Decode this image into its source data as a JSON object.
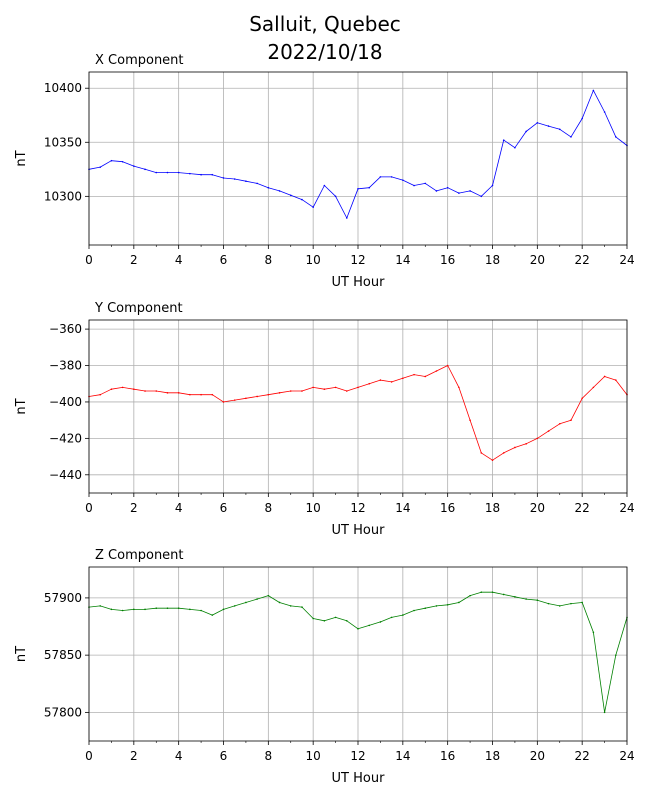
{
  "figure": {
    "title_line1": "Salluit, Quebec",
    "title_line2": "2022/10/18"
  },
  "chart_data": [
    {
      "type": "line",
      "title": "X Component",
      "xlabel": "UT Hour",
      "ylabel": "nT",
      "color": "#0000ff",
      "xlim": [
        0,
        24
      ],
      "ylim": [
        10255,
        10415
      ],
      "xticks": [
        0,
        2,
        4,
        6,
        8,
        10,
        12,
        14,
        16,
        18,
        20,
        22,
        24
      ],
      "yticks": [
        10300,
        10350,
        10400
      ],
      "grid": true,
      "x": [
        0,
        0.5,
        1,
        1.5,
        2,
        2.5,
        3,
        3.5,
        4,
        4.5,
        5,
        5.5,
        6,
        6.5,
        7,
        7.5,
        8,
        8.5,
        9,
        9.5,
        10,
        10.5,
        11,
        11.5,
        12,
        12.5,
        13,
        13.5,
        14,
        14.5,
        15,
        15.5,
        16,
        16.5,
        17,
        17.5,
        18,
        18.5,
        19,
        19.5,
        20,
        20.5,
        21,
        21.5,
        22,
        22.5,
        23,
        23.5,
        24
      ],
      "values": [
        10325,
        10327,
        10333,
        10332,
        10328,
        10325,
        10322,
        10322,
        10322,
        10321,
        10320,
        10320,
        10317,
        10316,
        10314,
        10312,
        10308,
        10305,
        10301,
        10297,
        10290,
        10310,
        10300,
        10280,
        10307,
        10308,
        10318,
        10318,
        10315,
        10310,
        10312,
        10305,
        10308,
        10303,
        10305,
        10300,
        10310,
        10352,
        10345,
        10360,
        10368,
        10365,
        10362,
        10355,
        10372,
        10398,
        10378,
        10355,
        10347
      ]
    },
    {
      "type": "line",
      "title": "Y Component",
      "xlabel": "UT Hour",
      "ylabel": "nT",
      "color": "#ff0000",
      "xlim": [
        0,
        24
      ],
      "ylim": [
        -450,
        -355
      ],
      "xticks": [
        0,
        2,
        4,
        6,
        8,
        10,
        12,
        14,
        16,
        18,
        20,
        22,
        24
      ],
      "yticks": [
        -440,
        -420,
        -400,
        -380,
        -360
      ],
      "grid": true,
      "x": [
        0,
        0.5,
        1,
        1.5,
        2,
        2.5,
        3,
        3.5,
        4,
        4.5,
        5,
        5.5,
        6,
        6.5,
        7,
        7.5,
        8,
        8.5,
        9,
        9.5,
        10,
        10.5,
        11,
        11.5,
        12,
        12.5,
        13,
        13.5,
        14,
        14.5,
        15,
        15.5,
        16,
        16.5,
        17,
        17.5,
        18,
        18.5,
        19,
        19.5,
        20,
        20.5,
        21,
        21.5,
        22,
        22.5,
        23,
        23.5,
        24
      ],
      "values": [
        -397,
        -396,
        -393,
        -392,
        -393,
        -394,
        -394,
        -395,
        -395,
        -396,
        -396,
        -396,
        -400,
        -399,
        -398,
        -397,
        -396,
        -395,
        -394,
        -394,
        -392,
        -393,
        -392,
        -394,
        -392,
        -390,
        -388,
        -389,
        -387,
        -385,
        -386,
        -383,
        -380,
        -392,
        -410,
        -428,
        -432,
        -428,
        -425,
        -423,
        -420,
        -416,
        -412,
        -410,
        -398,
        -392,
        -386,
        -388,
        -396
      ]
    },
    {
      "type": "line",
      "title": "Z Component",
      "xlabel": "UT Hour",
      "ylabel": "nT",
      "color": "#008000",
      "xlim": [
        0,
        24
      ],
      "ylim": [
        57775,
        57927
      ],
      "xticks": [
        0,
        2,
        4,
        6,
        8,
        10,
        12,
        14,
        16,
        18,
        20,
        22,
        24
      ],
      "yticks": [
        57800,
        57850,
        57900
      ],
      "grid": true,
      "x": [
        0,
        0.5,
        1,
        1.5,
        2,
        2.5,
        3,
        3.5,
        4,
        4.5,
        5,
        5.5,
        6,
        6.5,
        7,
        7.5,
        8,
        8.5,
        9,
        9.5,
        10,
        10.5,
        11,
        11.5,
        12,
        12.5,
        13,
        13.5,
        14,
        14.5,
        15,
        15.5,
        16,
        16.5,
        17,
        17.5,
        18,
        18.5,
        19,
        19.5,
        20,
        20.5,
        21,
        21.5,
        22,
        22.5,
        23,
        23.5,
        24
      ],
      "values": [
        57892,
        57893,
        57890,
        57889,
        57890,
        57890,
        57891,
        57891,
        57891,
        57890,
        57889,
        57885,
        57890,
        57893,
        57896,
        57899,
        57902,
        57896,
        57893,
        57892,
        57882,
        57880,
        57883,
        57880,
        57873,
        57876,
        57879,
        57883,
        57885,
        57889,
        57891,
        57893,
        57894,
        57896,
        57902,
        57905,
        57905,
        57903,
        57901,
        57899,
        57898,
        57895,
        57893,
        57895,
        57896,
        57870,
        57800,
        57850,
        57883
      ]
    }
  ]
}
